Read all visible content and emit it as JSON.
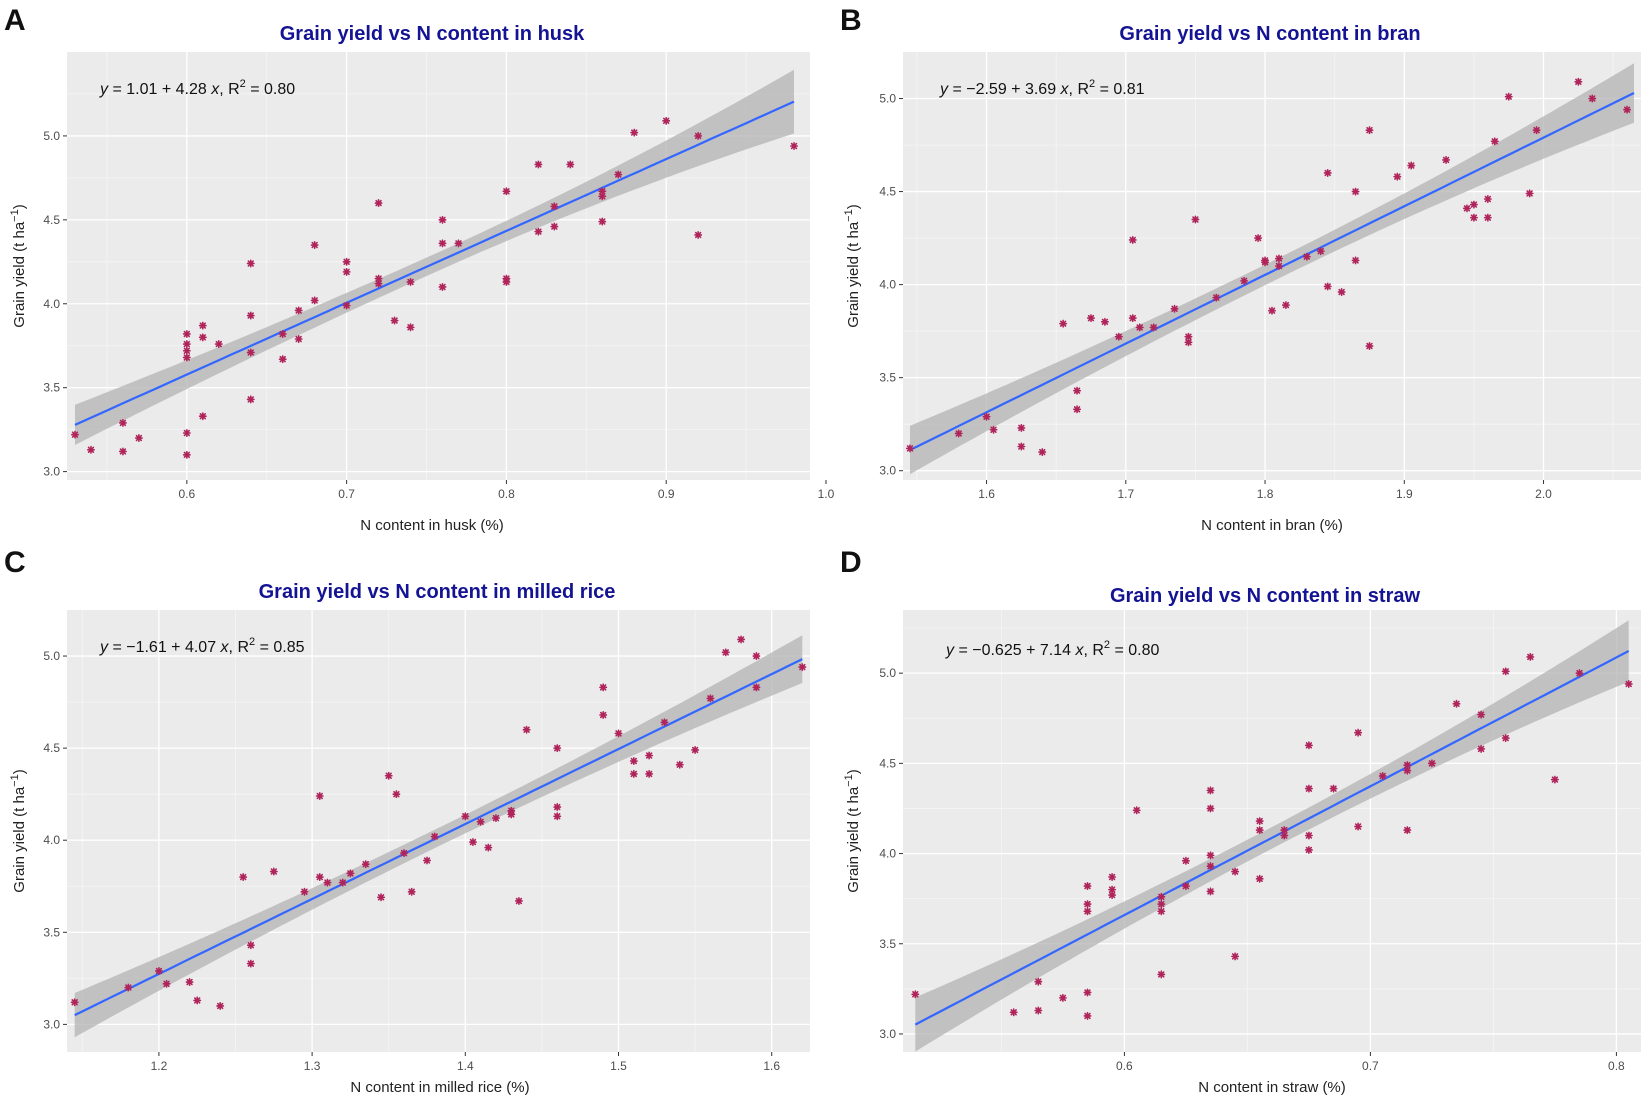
{
  "chart_data": [
    {
      "panel": "A",
      "type": "scatter",
      "title": "Grain yield vs N content in husk",
      "xlabel": "N content in husk (%)",
      "ylabel": {
        "base": "Grain yield (t ha",
        "sup": "−1",
        "tail": ")"
      },
      "equation": {
        "lhs": "y",
        "mid": " = 1.01 + 4.28 ",
        "var": "x",
        "r2label": ", R",
        "sup": "2",
        "r2value": " = 0.80"
      },
      "xlim": [
        0.525,
        0.99
      ],
      "ylim": [
        2.95,
        5.5
      ],
      "xticks": [
        0.6,
        0.7,
        0.8,
        0.9,
        1.0
      ],
      "xtick_labels": [
        "0.6",
        "0.7",
        "0.8",
        "0.9",
        "1.0"
      ],
      "yticks": [
        3.0,
        3.5,
        4.0,
        4.5,
        5.0
      ],
      "ytick_labels": [
        "3.0",
        "3.5",
        "4.0",
        "4.5",
        "5.0"
      ],
      "fit": {
        "intercept": 1.01,
        "slope": 4.28,
        "x_range": [
          0.53,
          0.98
        ],
        "band": [
          0.12,
          0.055,
          0.19
        ]
      },
      "points": [
        [
          0.53,
          3.22
        ],
        [
          0.54,
          3.13
        ],
        [
          0.56,
          3.12
        ],
        [
          0.56,
          3.29
        ],
        [
          0.57,
          3.2
        ],
        [
          0.6,
          3.1
        ],
        [
          0.6,
          3.23
        ],
        [
          0.6,
          3.68
        ],
        [
          0.6,
          3.72
        ],
        [
          0.6,
          3.76
        ],
        [
          0.6,
          3.82
        ],
        [
          0.61,
          3.33
        ],
        [
          0.61,
          3.8
        ],
        [
          0.61,
          3.87
        ],
        [
          0.62,
          3.76
        ],
        [
          0.64,
          3.43
        ],
        [
          0.64,
          3.71
        ],
        [
          0.64,
          3.93
        ],
        [
          0.64,
          4.24
        ],
        [
          0.66,
          3.67
        ],
        [
          0.66,
          3.82
        ],
        [
          0.67,
          3.79
        ],
        [
          0.67,
          3.96
        ],
        [
          0.68,
          4.02
        ],
        [
          0.68,
          4.35
        ],
        [
          0.7,
          3.99
        ],
        [
          0.7,
          4.19
        ],
        [
          0.7,
          4.25
        ],
        [
          0.72,
          4.12
        ],
        [
          0.72,
          4.15
        ],
        [
          0.72,
          4.6
        ],
        [
          0.73,
          3.9
        ],
        [
          0.74,
          3.86
        ],
        [
          0.74,
          4.13
        ],
        [
          0.76,
          4.1
        ],
        [
          0.76,
          4.36
        ],
        [
          0.76,
          4.5
        ],
        [
          0.77,
          4.36
        ],
        [
          0.8,
          4.13
        ],
        [
          0.8,
          4.15
        ],
        [
          0.8,
          4.67
        ],
        [
          0.82,
          4.43
        ],
        [
          0.82,
          4.83
        ],
        [
          0.83,
          4.46
        ],
        [
          0.83,
          4.58
        ],
        [
          0.84,
          4.83
        ],
        [
          0.86,
          4.49
        ],
        [
          0.86,
          4.64
        ],
        [
          0.86,
          4.67
        ],
        [
          0.87,
          4.77
        ],
        [
          0.88,
          5.02
        ],
        [
          0.9,
          5.09
        ],
        [
          0.92,
          4.41
        ],
        [
          0.92,
          5.0
        ],
        [
          0.98,
          4.94
        ]
      ]
    },
    {
      "panel": "B",
      "type": "scatter",
      "title": "Grain yield vs N content in bran",
      "xlabel": "N content in bran (%)",
      "ylabel": {
        "base": "Grain yield (t ha",
        "sup": "−1",
        "tail": ")"
      },
      "equation": {
        "lhs": "y",
        "mid": " = −2.59 + 3.69 ",
        "var": "x",
        "r2label": ", R",
        "sup": "2",
        "r2value": " = 0.81"
      },
      "xlim": [
        1.54,
        2.07
      ],
      "ylim": [
        2.95,
        5.25
      ],
      "xticks": [
        1.6,
        1.7,
        1.8,
        1.9,
        2.0
      ],
      "xtick_labels": [
        "1.6",
        "1.7",
        "1.8",
        "1.9",
        "2.0"
      ],
      "yticks": [
        3.0,
        3.5,
        4.0,
        4.5,
        5.0
      ],
      "ytick_labels": [
        "3.0",
        "3.5",
        "4.0",
        "4.5",
        "5.0"
      ],
      "fit": {
        "intercept": -2.59,
        "slope": 3.69,
        "x_range": [
          1.545,
          2.065
        ],
        "band": [
          0.13,
          0.055,
          0.16
        ]
      },
      "points": [
        [
          1.545,
          3.12
        ],
        [
          1.58,
          3.2
        ],
        [
          1.6,
          3.29
        ],
        [
          1.605,
          3.22
        ],
        [
          1.625,
          3.13
        ],
        [
          1.625,
          3.23
        ],
        [
          1.64,
          3.1
        ],
        [
          1.655,
          3.79
        ],
        [
          1.665,
          3.33
        ],
        [
          1.665,
          3.43
        ],
        [
          1.675,
          3.82
        ],
        [
          1.685,
          3.8
        ],
        [
          1.695,
          3.72
        ],
        [
          1.705,
          3.82
        ],
        [
          1.705,
          4.24
        ],
        [
          1.71,
          3.77
        ],
        [
          1.72,
          3.77
        ],
        [
          1.735,
          3.87
        ],
        [
          1.745,
          3.69
        ],
        [
          1.745,
          3.72
        ],
        [
          1.75,
          4.35
        ],
        [
          1.765,
          3.93
        ],
        [
          1.785,
          4.02
        ],
        [
          1.795,
          4.25
        ],
        [
          1.8,
          4.12
        ],
        [
          1.8,
          4.13
        ],
        [
          1.805,
          3.86
        ],
        [
          1.81,
          4.1
        ],
        [
          1.81,
          4.14
        ],
        [
          1.815,
          3.89
        ],
        [
          1.83,
          4.15
        ],
        [
          1.84,
          4.18
        ],
        [
          1.845,
          3.99
        ],
        [
          1.845,
          4.6
        ],
        [
          1.855,
          3.96
        ],
        [
          1.865,
          4.13
        ],
        [
          1.865,
          4.5
        ],
        [
          1.875,
          3.67
        ],
        [
          1.875,
          4.83
        ],
        [
          1.895,
          4.58
        ],
        [
          1.905,
          4.64
        ],
        [
          1.93,
          4.67
        ],
        [
          1.945,
          4.41
        ],
        [
          1.95,
          4.36
        ],
        [
          1.95,
          4.43
        ],
        [
          1.96,
          4.36
        ],
        [
          1.96,
          4.46
        ],
        [
          1.965,
          4.77
        ],
        [
          1.975,
          5.01
        ],
        [
          1.99,
          4.49
        ],
        [
          1.995,
          4.83
        ],
        [
          2.025,
          5.09
        ],
        [
          2.035,
          5.0
        ],
        [
          2.06,
          4.94
        ]
      ]
    },
    {
      "panel": "C",
      "type": "scatter",
      "title": "Grain yield vs N content in milled rice",
      "xlabel": "N content in milled rice (%)",
      "ylabel": {
        "base": "Grain yield (t ha",
        "sup": "−1",
        "tail": ")"
      },
      "equation": {
        "lhs": "y",
        "mid": " = −1.61 + 4.07 ",
        "var": "x",
        "r2label": ", R",
        "sup": "2",
        "r2value": " = 0.85"
      },
      "xlim": [
        1.14,
        1.625
      ],
      "ylim": [
        2.85,
        5.25
      ],
      "xticks": [
        1.2,
        1.3,
        1.4,
        1.5,
        1.6
      ],
      "xtick_labels": [
        "1.2",
        "1.3",
        "1.4",
        "1.5",
        "1.6"
      ],
      "yticks": [
        3.0,
        3.5,
        4.0,
        4.5,
        5.0
      ],
      "ytick_labels": [
        "3.0",
        "3.5",
        "4.0",
        "4.5",
        "5.0"
      ],
      "fit": {
        "intercept": -1.61,
        "slope": 4.07,
        "x_range": [
          1.145,
          1.62
        ],
        "band": [
          0.12,
          0.05,
          0.13
        ]
      },
      "points": [
        [
          1.145,
          3.12
        ],
        [
          1.18,
          3.2
        ],
        [
          1.2,
          3.29
        ],
        [
          1.205,
          3.22
        ],
        [
          1.22,
          3.23
        ],
        [
          1.225,
          3.13
        ],
        [
          1.24,
          3.1
        ],
        [
          1.255,
          3.8
        ],
        [
          1.26,
          3.33
        ],
        [
          1.26,
          3.43
        ],
        [
          1.275,
          3.83
        ],
        [
          1.295,
          3.72
        ],
        [
          1.305,
          3.8
        ],
        [
          1.305,
          4.24
        ],
        [
          1.31,
          3.77
        ],
        [
          1.32,
          3.77
        ],
        [
          1.325,
          3.82
        ],
        [
          1.335,
          3.87
        ],
        [
          1.345,
          3.69
        ],
        [
          1.35,
          4.35
        ],
        [
          1.355,
          4.25
        ],
        [
          1.36,
          3.93
        ],
        [
          1.365,
          3.72
        ],
        [
          1.375,
          3.89
        ],
        [
          1.38,
          4.02
        ],
        [
          1.4,
          4.13
        ],
        [
          1.405,
          3.99
        ],
        [
          1.41,
          4.1
        ],
        [
          1.415,
          3.96
        ],
        [
          1.42,
          4.12
        ],
        [
          1.43,
          4.14
        ],
        [
          1.43,
          4.16
        ],
        [
          1.435,
          3.67
        ],
        [
          1.44,
          4.6
        ],
        [
          1.46,
          4.13
        ],
        [
          1.46,
          4.18
        ],
        [
          1.46,
          4.5
        ],
        [
          1.49,
          4.68
        ],
        [
          1.49,
          4.83
        ],
        [
          1.5,
          4.58
        ],
        [
          1.51,
          4.36
        ],
        [
          1.51,
          4.43
        ],
        [
          1.52,
          4.36
        ],
        [
          1.52,
          4.46
        ],
        [
          1.53,
          4.64
        ],
        [
          1.54,
          4.41
        ],
        [
          1.55,
          4.49
        ],
        [
          1.56,
          4.77
        ],
        [
          1.57,
          5.02
        ],
        [
          1.58,
          5.09
        ],
        [
          1.59,
          4.83
        ],
        [
          1.59,
          5.0
        ],
        [
          1.62,
          4.94
        ]
      ]
    },
    {
      "panel": "D",
      "type": "scatter",
      "title": "Grain yield vs N content in straw",
      "xlabel": "N content in straw (%)",
      "ylabel": {
        "base": "Grain yield (t ha",
        "sup": "−1",
        "tail": ")"
      },
      "equation": {
        "lhs": "y",
        "mid": " = −0.625 + 7.14 ",
        "var": "x",
        "r2label": ", R",
        "sup": "2",
        "r2value": " = 0.80"
      },
      "xlim": [
        0.51,
        0.81
      ],
      "ylim": [
        2.9,
        5.35
      ],
      "xticks": [
        0.6,
        0.7,
        0.8
      ],
      "xtick_labels": [
        "0.6",
        "0.7",
        "0.8"
      ],
      "yticks": [
        3.0,
        3.5,
        4.0,
        4.5,
        5.0
      ],
      "ytick_labels": [
        "3.0",
        "3.5",
        "4.0",
        "4.5",
        "5.0"
      ],
      "fit": {
        "intercept": -0.625,
        "slope": 7.14,
        "x_range": [
          0.515,
          0.805
        ],
        "band": [
          0.15,
          0.06,
          0.17
        ]
      },
      "points": [
        [
          0.515,
          3.22
        ],
        [
          0.555,
          3.12
        ],
        [
          0.565,
          3.13
        ],
        [
          0.565,
          3.29
        ],
        [
          0.575,
          3.2
        ],
        [
          0.585,
          3.1
        ],
        [
          0.585,
          3.23
        ],
        [
          0.585,
          3.68
        ],
        [
          0.585,
          3.72
        ],
        [
          0.585,
          3.82
        ],
        [
          0.595,
          3.77
        ],
        [
          0.595,
          3.8
        ],
        [
          0.595,
          3.87
        ],
        [
          0.605,
          4.24
        ],
        [
          0.615,
          3.33
        ],
        [
          0.615,
          3.68
        ],
        [
          0.615,
          3.72
        ],
        [
          0.615,
          3.76
        ],
        [
          0.625,
          3.82
        ],
        [
          0.625,
          3.96
        ],
        [
          0.635,
          3.79
        ],
        [
          0.635,
          3.93
        ],
        [
          0.635,
          3.99
        ],
        [
          0.635,
          4.25
        ],
        [
          0.635,
          4.35
        ],
        [
          0.645,
          3.43
        ],
        [
          0.645,
          3.9
        ],
        [
          0.655,
          3.86
        ],
        [
          0.655,
          4.13
        ],
        [
          0.655,
          4.18
        ],
        [
          0.665,
          4.1
        ],
        [
          0.665,
          4.13
        ],
        [
          0.675,
          4.02
        ],
        [
          0.675,
          4.1
        ],
        [
          0.675,
          4.36
        ],
        [
          0.675,
          4.6
        ],
        [
          0.685,
          4.36
        ],
        [
          0.695,
          4.15
        ],
        [
          0.695,
          4.67
        ],
        [
          0.705,
          4.43
        ],
        [
          0.715,
          4.13
        ],
        [
          0.715,
          4.46
        ],
        [
          0.715,
          4.49
        ],
        [
          0.725,
          4.5
        ],
        [
          0.735,
          4.83
        ],
        [
          0.745,
          4.58
        ],
        [
          0.745,
          4.77
        ],
        [
          0.755,
          4.64
        ],
        [
          0.755,
          5.01
        ],
        [
          0.765,
          5.09
        ],
        [
          0.775,
          4.41
        ],
        [
          0.785,
          5.0
        ],
        [
          0.805,
          4.94
        ]
      ]
    }
  ],
  "colors": {
    "panel_bg": "#ebebeb",
    "grid_major": "#ffffff",
    "grid_minor": "#f5f5f5",
    "band": "#b3b3b3",
    "fit_line": "#3366ff",
    "point": "#b0245c",
    "title": "#131394"
  }
}
